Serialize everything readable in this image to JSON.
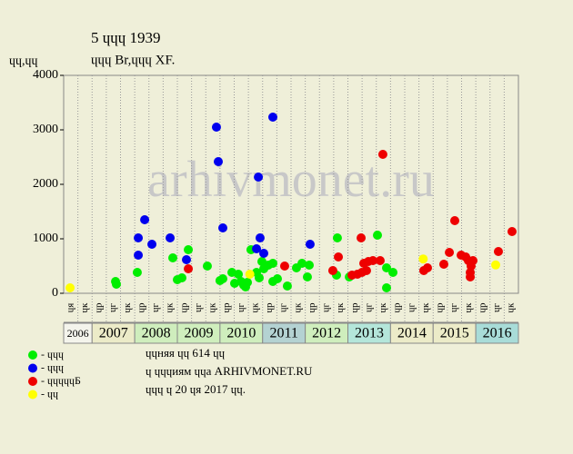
{
  "chart_data": {
    "type": "scatter",
    "title": "5 ɥɥɥ 1939",
    "subtitle": "ɥɥɥ Br,ɥɥɥ XF.",
    "y_label": "ɥɥ,ɥɥ",
    "watermark": "arhivmonet.ru",
    "ylim": [
      0,
      4000
    ],
    "yticks": [
      0,
      1000,
      2000,
      3000,
      4000
    ],
    "xlim": [
      0,
      32
    ],
    "grid": "vertical",
    "categories": [
      "ɥя",
      "ɥк",
      "ɥр",
      "ɥг",
      "ɥк",
      "ɥр",
      "ɥг",
      "ɥк",
      "ɥр",
      "ɥг",
      "ɥк",
      "ɥр",
      "ɥг",
      "ɥк",
      "ɥр",
      "ɥг",
      "ɥк",
      "ɥр",
      "ɥг",
      "ɥк",
      "ɥр",
      "ɥг",
      "ɥк",
      "ɥр",
      "ɥг",
      "ɥк",
      "ɥр",
      "ɥг",
      "ɥк",
      "ɥр",
      "ɥг",
      "ɥк"
    ],
    "x_groups": [
      {
        "label": "2006",
        "from": 0,
        "to": 2,
        "color": "#f4f4ec"
      },
      {
        "label": "2007",
        "from": 2,
        "to": 5,
        "color": "#ecebc8"
      },
      {
        "label": "2008",
        "from": 5,
        "to": 8,
        "color": "#cfeebd"
      },
      {
        "label": "2009",
        "from": 8,
        "to": 11,
        "color": "#cfeebd"
      },
      {
        "label": "2010",
        "from": 11,
        "to": 14,
        "color": "#cfeebd"
      },
      {
        "label": "2011",
        "from": 14,
        "to": 17,
        "color": "#b4d2d2"
      },
      {
        "label": "2012",
        "from": 17,
        "to": 20,
        "color": "#cfeebd"
      },
      {
        "label": "2013",
        "from": 20,
        "to": 23,
        "color": "#b4e6da"
      },
      {
        "label": "2014",
        "from": 23,
        "to": 26,
        "color": "#ecebc8"
      },
      {
        "label": "2015",
        "from": 26,
        "to": 29,
        "color": "#ecebc8"
      },
      {
        "label": "2016",
        "from": 29,
        "to": 32,
        "color": "#a8dcd8"
      }
    ],
    "series": [
      {
        "name": "- ɥɥɥ",
        "color": "#00ee00",
        "x": [
          3.65,
          3.71,
          5.18,
          7.68,
          8.0,
          8.32,
          8.77,
          10.11,
          11.0,
          11.2,
          11.84,
          12.03,
          12.29,
          12.48,
          12.67,
          12.8,
          12.93,
          13.18,
          13.57,
          13.76,
          13.95,
          14.08,
          14.4,
          14.72,
          14.72,
          15.04,
          15.74,
          16.38,
          16.77,
          17.15,
          17.28,
          19.26,
          19.2,
          20.1,
          22.08,
          22.72,
          22.72,
          23.17
        ],
        "values": [
          217,
          167,
          383,
          650,
          250,
          283,
          800,
          500,
          233,
          267,
          383,
          183,
          350,
          217,
          150,
          117,
          200,
          800,
          383,
          283,
          583,
          450,
          517,
          550,
          217,
          267,
          133,
          467,
          550,
          300,
          517,
          1017,
          333,
          300,
          1067,
          100,
          467,
          383
        ]
      },
      {
        "name": "- ɥɥɥ",
        "color": "#0000ee",
        "x": [
          5.25,
          5.25,
          5.7,
          6.21,
          7.49,
          8.64,
          10.75,
          10.88,
          11.2,
          13.57,
          13.7,
          13.82,
          14.08,
          14.72,
          17.34
        ],
        "values": [
          700,
          1017,
          1350,
          900,
          1017,
          617,
          3050,
          2417,
          1200,
          817,
          2133,
          1017,
          733,
          3233,
          900
        ]
      },
      {
        "name": "- ɥɥɥɥɥБ",
        "color": "#ee0000",
        "x": [
          8.77,
          15.55,
          18.94,
          19.33,
          20.29,
          20.67,
          20.93,
          20.99,
          21.12,
          21.31,
          21.44,
          21.76,
          22.27,
          22.46,
          25.34,
          25.6,
          26.75,
          27.14,
          27.52,
          27.97,
          28.29,
          28.48,
          28.61,
          28.61,
          28.67,
          28.8,
          30.59,
          31.55
        ],
        "values": [
          450,
          500,
          417,
          667,
          333,
          350,
          1017,
          383,
          550,
          417,
          583,
          600,
          600,
          2550,
          417,
          467,
          533,
          750,
          1333,
          700,
          667,
          600,
          383,
          300,
          500,
          600,
          767,
          1133
        ]
      },
      {
        "name": "- ɥɥ",
        "color": "#ffff00",
        "x": [
          0.45,
          13.1,
          25.3,
          30.4
        ],
        "values": [
          100,
          350,
          630,
          520
        ]
      }
    ],
    "notes": [
      "ɥɥняя ɥɥ 614 ɥɥ",
      "ɥ ɥɥɥиям ɥɥа ARHIVMONET.RU",
      "ɥɥɥ ɥ 20 ɥя 2017 ɥɥ."
    ]
  }
}
